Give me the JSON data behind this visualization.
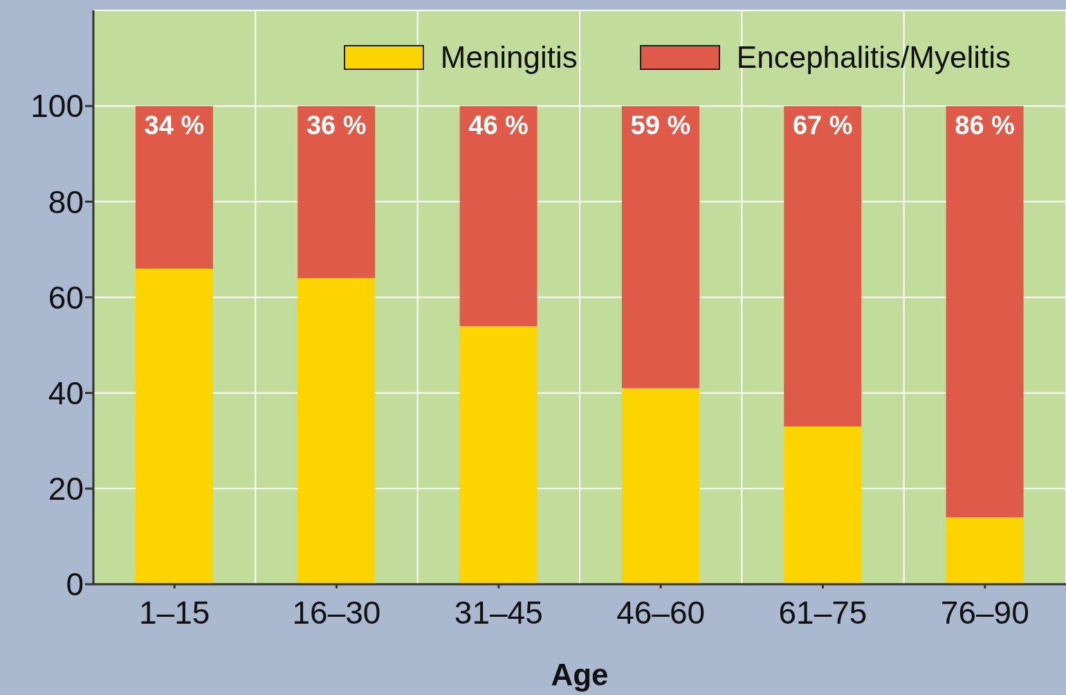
{
  "chart_data": {
    "type": "bar",
    "stacked": true,
    "xlabel": "Age",
    "categories": [
      "1–15",
      "16–30",
      "31–45",
      "46–60",
      "61–75",
      "76–90"
    ],
    "series": [
      {
        "name": "Meningitis",
        "color": "#fcd400",
        "values": [
          66,
          64,
          54,
          41,
          33,
          14
        ]
      },
      {
        "name": "Encephalitis/Myelitis",
        "color": "#e05a4a",
        "values": [
          34,
          36,
          46,
          59,
          67,
          86
        ],
        "value_labels": [
          "34 %",
          "36 %",
          "46 %",
          "59 %",
          "67 %",
          "86 %"
        ]
      }
    ],
    "ylim": [
      0,
      120
    ],
    "yticks": [
      0,
      20,
      40,
      60,
      80,
      100
    ],
    "grid": true,
    "legend": "top right"
  }
}
